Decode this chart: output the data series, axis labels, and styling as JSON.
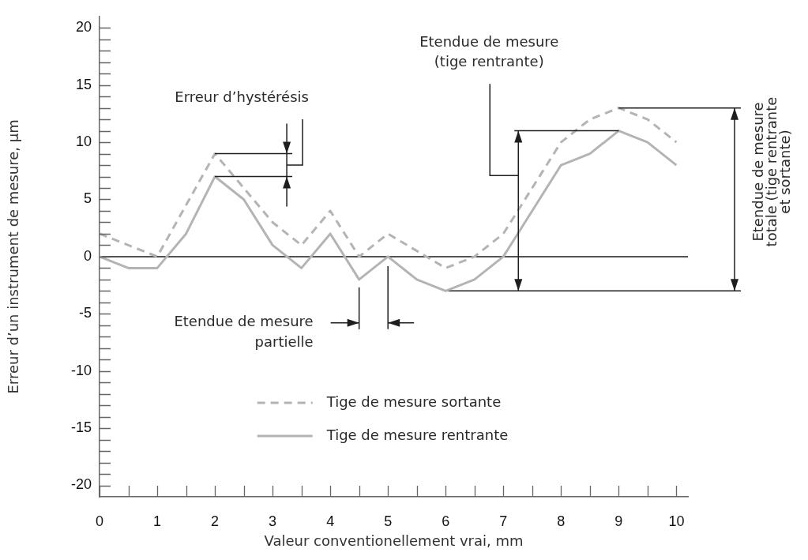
{
  "chart_data": {
    "type": "line",
    "xlabel": "Valeur conventionellement vrai, mm",
    "ylabel": "Erreur d’un instrument de mesure, µm",
    "x": [
      0,
      0.5,
      1,
      1.5,
      2,
      2.5,
      3,
      3.5,
      4,
      4.5,
      5,
      5.5,
      6,
      6.5,
      7,
      7.5,
      8,
      8.5,
      9,
      9.5,
      10
    ],
    "series": [
      {
        "name": "Tige de mesure sortante",
        "color": "#b4b4b4",
        "line_style": "dashed",
        "values": [
          2,
          1,
          0,
          4.5,
          9,
          6,
          3,
          1,
          4,
          0,
          2,
          0.5,
          -1,
          0,
          2,
          6,
          10,
          12,
          13,
          12,
          10
        ]
      },
      {
        "name": "Tige de mesure rentrante",
        "color": "#b4b4b4",
        "line_style": "solid",
        "values": [
          0,
          -1,
          -1,
          2,
          7,
          5,
          1,
          -1,
          2,
          -2,
          0,
          -2,
          -3,
          -2,
          0,
          4,
          8,
          9,
          11,
          10,
          8
        ]
      }
    ],
    "xlim": [
      0,
      10.2
    ],
    "ylim": [
      -21,
      21
    ],
    "xticks": [
      0,
      {
        "value": 0.5,
        "label": null
      },
      1,
      {
        "value": 1.5,
        "label": null
      },
      2,
      {
        "value": 2.5,
        "label": null
      },
      3,
      {
        "value": 3.5,
        "label": null
      },
      4,
      {
        "value": 4.5,
        "label": null
      },
      5,
      {
        "value": 5.5,
        "label": null
      },
      6,
      {
        "value": 6.5,
        "label": null
      },
      7,
      {
        "value": 7.5,
        "label": null
      },
      8,
      {
        "value": 8.5,
        "label": null
      },
      9,
      {
        "value": 9.5,
        "label": null
      },
      10
    ],
    "yticks": [
      -20,
      {
        "value": -19,
        "label": null
      },
      {
        "value": -18,
        "label": null
      },
      {
        "value": -17,
        "label": null
      },
      {
        "value": -16,
        "label": null
      },
      -15,
      {
        "value": -14,
        "label": null
      },
      {
        "value": -13,
        "label": null
      },
      {
        "value": -12,
        "label": null
      },
      {
        "value": -11,
        "label": null
      },
      -10,
      {
        "value": -9,
        "label": null
      },
      {
        "value": -8,
        "label": null
      },
      {
        "value": -7,
        "label": null
      },
      {
        "value": -6,
        "label": null
      },
      -5,
      {
        "value": -4,
        "label": null
      },
      {
        "value": -3,
        "label": null
      },
      {
        "value": -2,
        "label": null
      },
      {
        "value": -1,
        "label": null
      },
      0,
      {
        "value": 1,
        "label": null
      },
      {
        "value": 2,
        "label": null
      },
      {
        "value": 3,
        "label": null
      },
      {
        "value": 4,
        "label": null
      },
      5,
      {
        "value": 6,
        "label": null
      },
      {
        "value": 7,
        "label": null
      },
      {
        "value": 8,
        "label": null
      },
      {
        "value": 9,
        "label": null
      },
      10,
      {
        "value": 11,
        "label": null
      },
      {
        "value": 12,
        "label": null
      },
      {
        "value": 13,
        "label": null
      },
      {
        "value": 14,
        "label": null
      },
      15,
      {
        "value": 16,
        "label": null
      },
      {
        "value": 17,
        "label": null
      },
      {
        "value": 18,
        "label": null
      },
      {
        "value": 19,
        "label": null
      },
      20
    ],
    "ref_lines": [
      {
        "axis": "y",
        "value": 0,
        "color": "#1a1a1a"
      },
      {
        "axis": "y",
        "value": -3,
        "color": "#1e1e1e"
      }
    ],
    "legend": "bottom",
    "annotations": [
      "Erreur d’hystérésis",
      "Etendue de mesure\npartielle",
      "Etendue de mesure\n(tige rentrante)",
      {
        "text": "Etendue de mesure\ntotale (tige rentrante\net sortante)",
        "x": 9,
        "y": 13
      }
    ]
  }
}
